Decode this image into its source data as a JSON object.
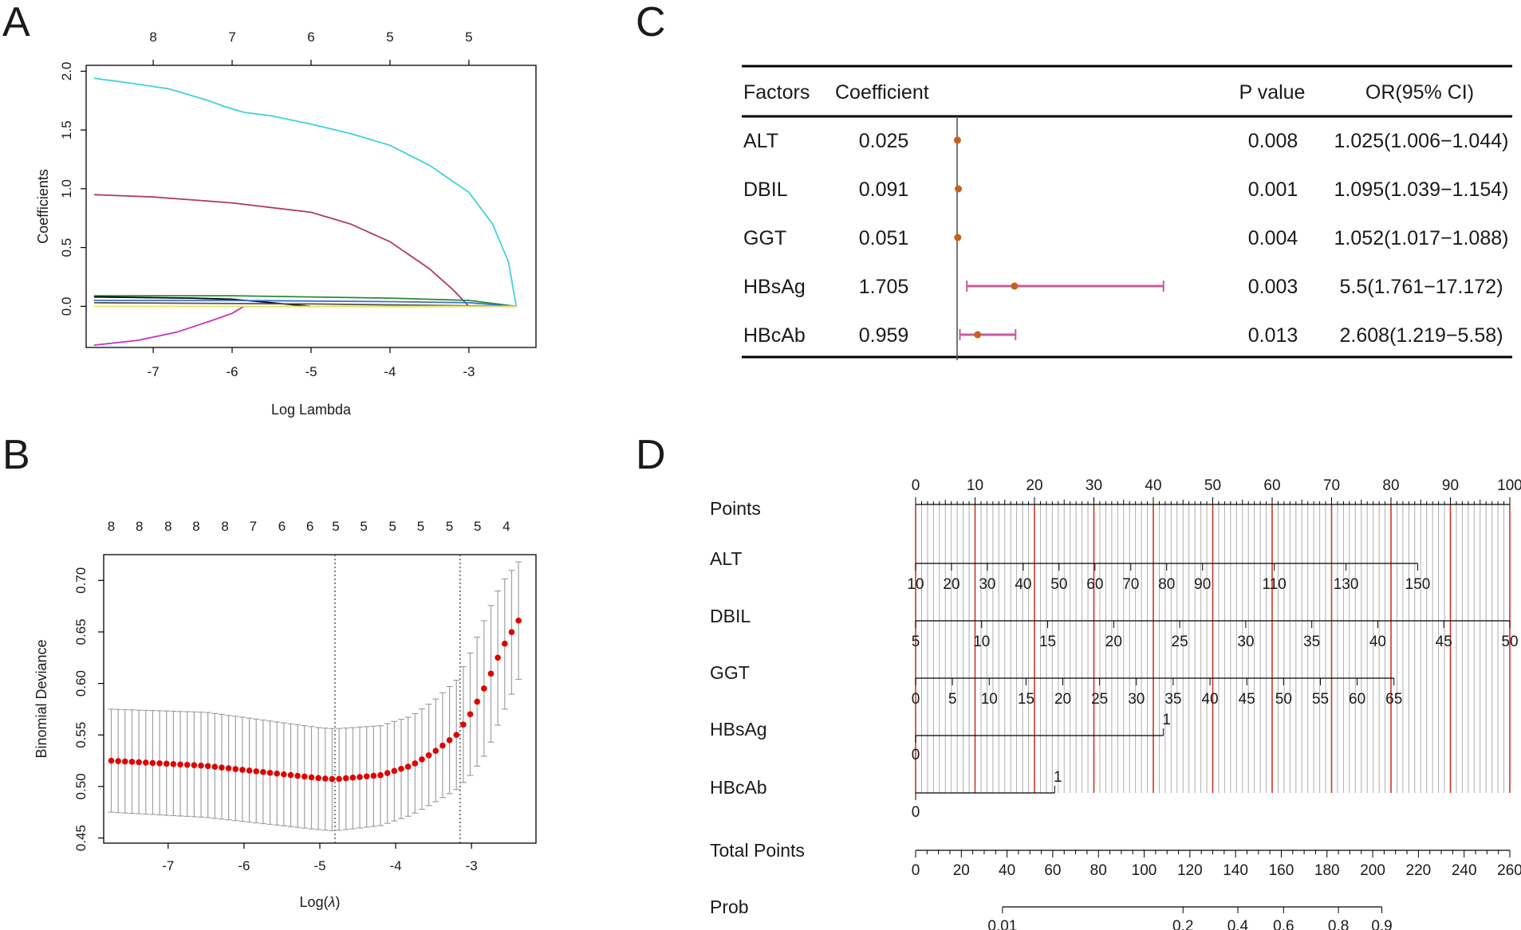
{
  "panels": {
    "A": "A",
    "B": "B",
    "C": "C",
    "D": "D"
  },
  "chart_data": [
    {
      "id": "A",
      "type": "line",
      "title": "",
      "xlabel": "Log Lambda",
      "ylabel": "Coefficients",
      "xlim": [
        -7.85,
        -2.15
      ],
      "ylim": [
        -0.35,
        2.05
      ],
      "xticks": [
        -7,
        -6,
        -5,
        -4,
        -3
      ],
      "yticks": [
        0.0,
        0.5,
        1.0,
        1.5,
        2.0
      ],
      "yticklabels": [
        "0.0",
        "0.5",
        "1.0",
        "1.5",
        "2.0"
      ],
      "top_axis": {
        "positions": [
          -7,
          -6,
          -5,
          -4,
          -3
        ],
        "labels": [
          "8",
          "7",
          "6",
          "5",
          "5"
        ]
      },
      "series": [
        {
          "name": "path1",
          "color": "#3fd1dc",
          "x": [
            -7.75,
            -7.3,
            -6.8,
            -6.3,
            -6.1,
            -5.85,
            -5.5,
            -5.0,
            -4.5,
            -4.0,
            -3.5,
            -3.0,
            -2.7,
            -2.5,
            -2.4
          ],
          "y": [
            1.94,
            1.9,
            1.85,
            1.75,
            1.7,
            1.65,
            1.62,
            1.55,
            1.47,
            1.37,
            1.2,
            0.97,
            0.7,
            0.38,
            0.0
          ]
        },
        {
          "name": "path2",
          "color": "#b03c64",
          "x": [
            -7.75,
            -7.0,
            -6.0,
            -5.0,
            -4.5,
            -4.0,
            -3.5,
            -3.2,
            -3.0
          ],
          "y": [
            0.95,
            0.93,
            0.88,
            0.8,
            0.7,
            0.55,
            0.32,
            0.14,
            0.0
          ]
        },
        {
          "name": "path3",
          "color": "#c232c2",
          "x": [
            -7.75,
            -7.2,
            -6.7,
            -6.3,
            -6.0,
            -5.85,
            -5.5,
            -4.0,
            -2.4
          ],
          "y": [
            -0.33,
            -0.29,
            -0.22,
            -0.13,
            -0.06,
            0.0,
            0.0,
            0.0,
            0.0
          ]
        },
        {
          "name": "path4",
          "color": "#2d8a2d",
          "x": [
            -7.75,
            -6.0,
            -4.0,
            -3.0,
            -2.4
          ],
          "y": [
            0.09,
            0.09,
            0.07,
            0.05,
            0.0
          ]
        },
        {
          "name": "path5",
          "color": "#000000",
          "x": [
            -7.75,
            -6.5,
            -6.0,
            -5.5,
            -5.0
          ],
          "y": [
            0.08,
            0.07,
            0.06,
            0.03,
            0.0
          ]
        },
        {
          "name": "path6",
          "color": "#3a6fd8",
          "x": [
            -7.75,
            -6.0,
            -4.0,
            -3.0,
            -2.4
          ],
          "y": [
            0.05,
            0.05,
            0.04,
            0.03,
            0.0
          ]
        },
        {
          "name": "path7",
          "color": "#555555",
          "x": [
            -7.75,
            -5.0,
            -2.4
          ],
          "y": [
            0.03,
            0.02,
            0.0
          ]
        },
        {
          "name": "path8",
          "color": "#e8e85a",
          "x": [
            -7.75,
            -2.4
          ],
          "y": [
            0.0,
            0.0
          ]
        }
      ]
    },
    {
      "id": "B",
      "type": "scatter",
      "title": "",
      "xlabel_prefix": "Log(",
      "xlabel_symbol": "λ",
      "xlabel_suffix": ")",
      "ylabel": "Binomial Deviance",
      "xlim": [
        -7.85,
        -2.15
      ],
      "ylim": [
        0.445,
        0.725
      ],
      "xticks": [
        -7,
        -6,
        -5,
        -4,
        -3
      ],
      "yticks": [
        0.45,
        0.5,
        0.55,
        0.6,
        0.65,
        0.7
      ],
      "yticklabels": [
        "0.45",
        "0.50",
        "0.55",
        "0.60",
        "0.65",
        "0.70"
      ],
      "top_axis": {
        "positions": [
          -7.75,
          -7.38,
          -7.0,
          -6.63,
          -6.25,
          -5.88,
          -5.5,
          -5.13,
          -4.79,
          -4.42,
          -4.04,
          -3.67,
          -3.29,
          -2.92,
          -2.54
        ],
        "labels": [
          "8",
          "8",
          "8",
          "8",
          "8",
          "7",
          "6",
          "6",
          "5",
          "5",
          "5",
          "5",
          "5",
          "5",
          "4"
        ]
      },
      "vlines": [
        -4.8,
        -3.15
      ],
      "points": {
        "x_start": -7.75,
        "x_end": -2.38,
        "n": 60,
        "mean_knots_x": [
          -7.75,
          -6.5,
          -5.0,
          -4.8,
          -4.2,
          -3.8,
          -3.5,
          -3.2,
          -3.0,
          -2.8,
          -2.6,
          -2.38
        ],
        "mean_knots_y": [
          0.525,
          0.52,
          0.508,
          0.507,
          0.511,
          0.52,
          0.533,
          0.55,
          0.572,
          0.6,
          0.634,
          0.661
        ],
        "upper_knots_y": [
          0.575,
          0.572,
          0.557,
          0.556,
          0.559,
          0.568,
          0.583,
          0.603,
          0.632,
          0.667,
          0.698,
          0.718
        ],
        "lower_knots_y": [
          0.475,
          0.47,
          0.458,
          0.457,
          0.462,
          0.472,
          0.484,
          0.497,
          0.512,
          0.533,
          0.569,
          0.604
        ]
      },
      "point_color": "#e00000",
      "errorbar_color": "#a0a0a0"
    },
    {
      "id": "C",
      "type": "table",
      "title": "",
      "columns": [
        "Factors",
        "Coefficient",
        "P value",
        "OR(95% CI)"
      ],
      "rows": [
        {
          "factor": "ALT",
          "coefficient": "0.025",
          "p": "0.008",
          "ci": "1.025(1.006−1.044)",
          "or": 1.025,
          "low": 1.006,
          "high": 1.044
        },
        {
          "factor": "DBIL",
          "coefficient": "0.091",
          "p": "0.001",
          "ci": "1.095(1.039−1.154)",
          "or": 1.095,
          "low": 1.039,
          "high": 1.154
        },
        {
          "factor": "GGT",
          "coefficient": "0.051",
          "p": "0.004",
          "ci": "1.052(1.017−1.088)",
          "or": 1.052,
          "low": 1.017,
          "high": 1.088
        },
        {
          "factor": "HBsAg",
          "coefficient": "1.705",
          "p": "0.003",
          "ci": "5.5(1.761−17.172)",
          "or": 5.5,
          "low": 1.761,
          "high": 17.172
        },
        {
          "factor": "HBcAb",
          "coefficient": "0.959",
          "p": "0.013",
          "ci": "2.608(1.219−5.58)",
          "or": 2.608,
          "low": 1.219,
          "high": 5.58
        }
      ],
      "forest": {
        "ref_value": 1.0,
        "xlim": [
          0.98,
          21.0
        ],
        "point_color": "#c8601e",
        "ci_color": "#c45ea0"
      }
    },
    {
      "id": "D",
      "type": "nomogram",
      "points_scale": {
        "label": "Points",
        "min": 0,
        "max": 100,
        "labels": [
          "0",
          "10",
          "20",
          "30",
          "40",
          "50",
          "60",
          "70",
          "80",
          "90",
          "100"
        ]
      },
      "variables": [
        {
          "label": "ALT",
          "vmin": 10,
          "vmax": 150,
          "ticks": [
            "10",
            "20",
            "30",
            "40",
            "50",
            "60",
            "70",
            "80",
            "90",
            "110",
            "130",
            "150"
          ],
          "label_side": "below"
        },
        {
          "label": "DBIL",
          "vmin": 5,
          "vmax": 50,
          "ticks": [
            "5",
            "10",
            "15",
            "20",
            "25",
            "30",
            "35",
            "40",
            "45",
            "50"
          ],
          "label_side": "below"
        },
        {
          "label": "GGT",
          "vmin": 0,
          "vmax": 65,
          "ticks": [
            "0",
            "5",
            "10",
            "15",
            "20",
            "25",
            "30",
            "35",
            "40",
            "45",
            "50",
            "55",
            "60",
            "65"
          ],
          "label_side": "below"
        },
        {
          "label": "HBsAg",
          "binary_points": 41.7,
          "ticks": [
            "0",
            "1"
          ],
          "label_side": "binary"
        },
        {
          "label": "HBcAb",
          "binary_points": 23.4,
          "ticks": [
            "0",
            "1"
          ],
          "label_side": "binary"
        }
      ],
      "total_points": {
        "label": "Total Points",
        "min": 0,
        "max": 260,
        "labels": [
          "0",
          "20",
          "40",
          "60",
          "80",
          "100",
          "120",
          "140",
          "160",
          "180",
          "200",
          "220",
          "240",
          "260"
        ]
      },
      "prob": {
        "label": "Prob",
        "labels": [
          "0.01",
          "0.2",
          "0.4",
          "0.6",
          "0.8",
          "0.9"
        ],
        "total_points_at": [
          38,
          117,
          141,
          161,
          185,
          204
        ]
      },
      "gridline_color": "#9a9a9a",
      "highlight_color": "#cc2a1a"
    }
  ]
}
